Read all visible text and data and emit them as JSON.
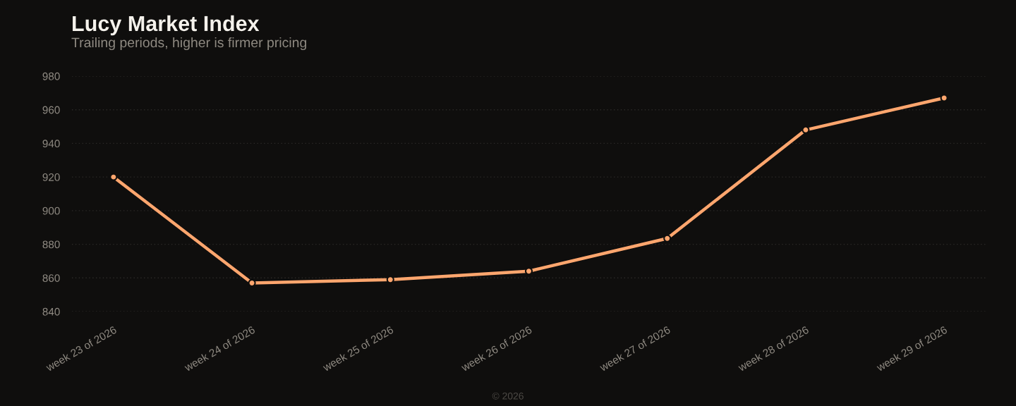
{
  "chart_data": {
    "type": "line",
    "title": "Lucy Market Index",
    "subtitle": "Trailing periods, higher is firmer pricing",
    "categories": [
      "week 23 of 2026",
      "week 24 of 2026",
      "week 25 of 2026",
      "week 26 of 2026",
      "week 27 of 2026",
      "week 28 of 2026",
      "week 29 of 2026"
    ],
    "series": [
      {
        "color": "#ffa66e",
        "values": [
          920,
          857,
          859,
          864,
          883.5,
          948,
          967
        ]
      }
    ],
    "ylim": [
      840,
      980
    ],
    "yticks": [
      840,
      860,
      880,
      900,
      920,
      940,
      960,
      980
    ],
    "grid": "y",
    "marker": "circle",
    "line_style": "solid",
    "annotations": [
      "© 2026"
    ]
  }
}
